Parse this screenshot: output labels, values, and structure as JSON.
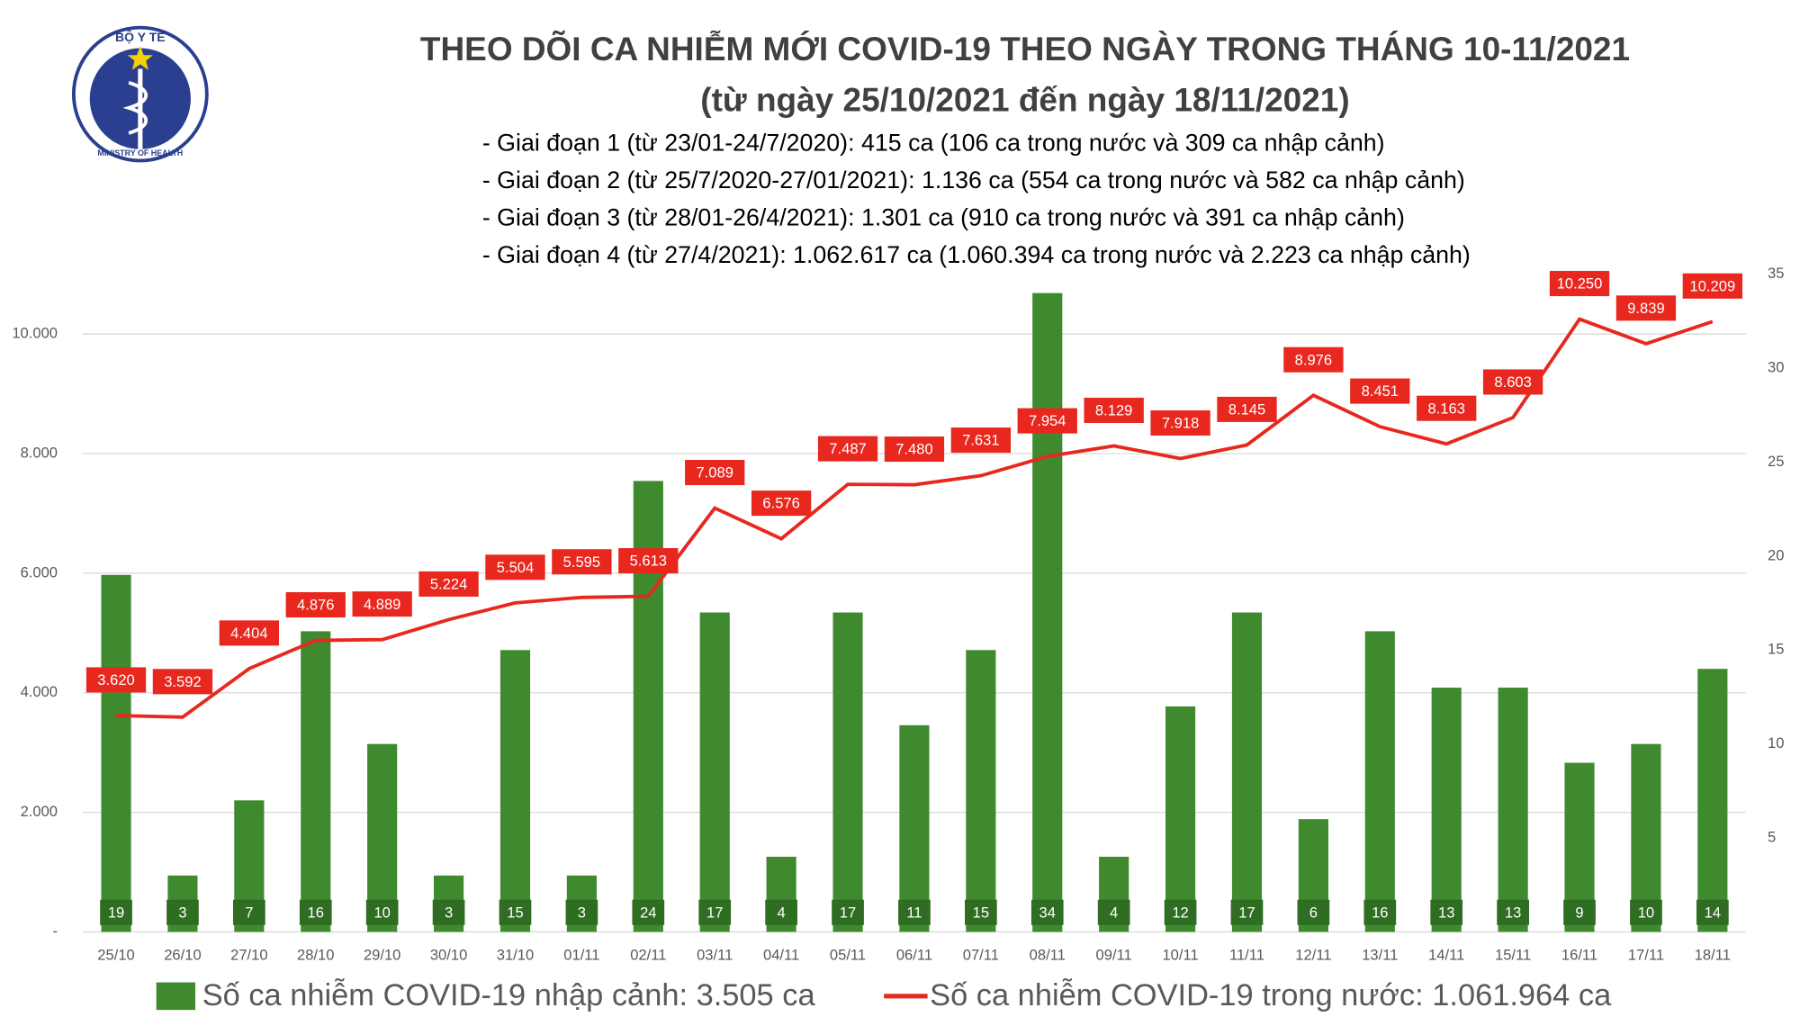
{
  "logo": {
    "top_text": "BỘ Y TẾ",
    "bottom_text": "MINISTRY OF HEALTH"
  },
  "chart_data": {
    "type": "bar_line",
    "title": "THEO DÕI CA NHIỄM MỚI COVID-19 THEO NGÀY TRONG THÁNG 10-11/2021",
    "subtitle": "(từ ngày 25/10/2021 đến ngày 18/11/2021)",
    "notes": [
      "- Giai đoạn 1 (từ 23/01-24/7/2020): 415 ca (106 ca trong nước và 309 ca nhập cảnh)",
      "- Giai đoạn 2 (từ 25/7/2020-27/01/2021): 1.136 ca (554 ca trong nước và 582 ca nhập cảnh)",
      "- Giai đoạn 3 (từ 28/01-26/4/2021): 1.301 ca (910 ca trong nước và 391 ca nhập cảnh)",
      "- Giai đoạn 4 (từ 27/4/2021): 1.062.617 ca (1.060.394 ca trong nước và 2.223 ca nhập cảnh)"
    ],
    "categories": [
      "25/10",
      "26/10",
      "27/10",
      "28/10",
      "29/10",
      "30/10",
      "31/10",
      "01/11",
      "02/11",
      "03/11",
      "04/11",
      "05/11",
      "06/11",
      "07/11",
      "08/11",
      "09/11",
      "10/11",
      "11/11",
      "12/11",
      "13/11",
      "14/11",
      "15/11",
      "16/11",
      "17/11",
      "18/11"
    ],
    "series": [
      {
        "name": "Số ca nhiễm COVID-19 nhập cảnh: 3.505 ca",
        "type": "bar",
        "axis": "y2",
        "color": "#3f8a2e",
        "values": [
          19,
          3,
          7,
          16,
          10,
          3,
          15,
          3,
          24,
          17,
          4,
          17,
          11,
          15,
          34,
          4,
          12,
          17,
          6,
          16,
          13,
          13,
          9,
          10,
          14
        ]
      },
      {
        "name": "Số ca nhiễm COVID-19 trong nước: 1.061.964 ca",
        "type": "line",
        "color": "#e8281e",
        "values": [
          3620,
          3592,
          4404,
          4876,
          4889,
          5224,
          5504,
          5595,
          5613,
          7089,
          6576,
          7487,
          7480,
          7631,
          7954,
          8129,
          7918,
          8145,
          8976,
          8451,
          8163,
          8603,
          10250,
          9839,
          10209
        ],
        "value_labels": [
          "3.620",
          "3.592",
          "4.404",
          "4.876",
          "4.889",
          "5.224",
          "5.504",
          "5.595",
          "5.613",
          "7.089",
          "6.576",
          "7.487",
          "7.480",
          "7.631",
          "7.954",
          "8.129",
          "7.918",
          "8.145",
          "8.976",
          "8.451",
          "8.163",
          "8.603",
          "10.250",
          "9.839",
          "10.209"
        ]
      }
    ],
    "ylim": [
      0,
      11000
    ],
    "yticks": [
      {
        "value": 0,
        "label": "-"
      },
      {
        "value": 2000,
        "label": "2.000"
      },
      {
        "value": 4000,
        "label": "4.000"
      },
      {
        "value": 6000,
        "label": "6.000"
      },
      {
        "value": 8000,
        "label": "8.000"
      },
      {
        "value": 10000,
        "label": "10.000"
      }
    ],
    "y2lim": [
      0,
      35
    ],
    "y2ticks": [
      5,
      10,
      15,
      20,
      25,
      30,
      35
    ],
    "grid": true
  }
}
